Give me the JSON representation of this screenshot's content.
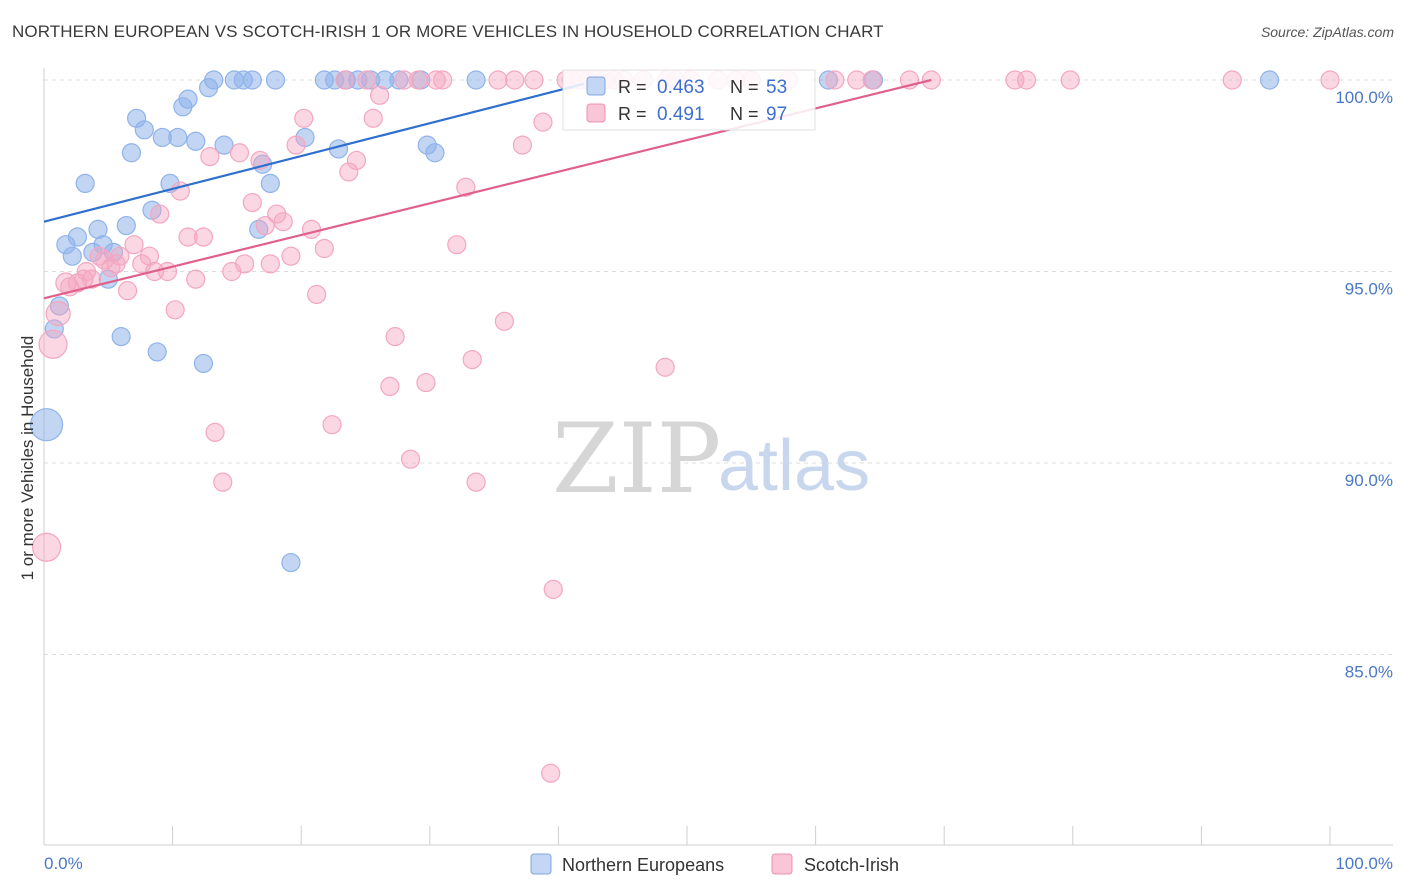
{
  "title": "NORTHERN EUROPEAN VS SCOTCH-IRISH 1 OR MORE VEHICLES IN HOUSEHOLD CORRELATION CHART",
  "source": "Source: ZipAtlas.com",
  "watermark": {
    "part1": "ZIP",
    "part2": "atlas"
  },
  "chart_data": {
    "type": "scatter",
    "xlabel": "",
    "ylabel": "1 or more Vehicles in Household",
    "xlim": [
      0,
      100
    ],
    "ylim": [
      80.5,
      100.7
    ],
    "x_ticks_labels": {
      "left": "0.0%",
      "right": "100.0%"
    },
    "y_ticks": [
      {
        "value": 100,
        "label": "100.0%"
      },
      {
        "value": 95,
        "label": "95.0%"
      },
      {
        "value": 90,
        "label": "90.0%"
      },
      {
        "value": 85,
        "label": "85.0%"
      }
    ],
    "grid": true,
    "legend_position": "top-center",
    "series": [
      {
        "name": "Northern Europeans",
        "color": "#8fb3ea",
        "line_color": "#2f6fce",
        "R": "0.463",
        "N": "53",
        "trend": {
          "x0": 0,
          "y0": 96.3,
          "x1": 42,
          "y1": 99.9
        },
        "points": [
          [
            0.2,
            91.0,
            16
          ],
          [
            0.8,
            93.5,
            9
          ],
          [
            1.2,
            94.1,
            9
          ],
          [
            1.7,
            95.7,
            9
          ],
          [
            2.2,
            95.4,
            9
          ],
          [
            2.6,
            95.9,
            9
          ],
          [
            3.2,
            97.3,
            9
          ],
          [
            3.8,
            95.5,
            9
          ],
          [
            4.2,
            96.1,
            9
          ],
          [
            4.6,
            95.7,
            9
          ],
          [
            5.0,
            94.8,
            9
          ],
          [
            5.4,
            95.5,
            9
          ],
          [
            6.0,
            93.3,
            9
          ],
          [
            6.4,
            96.2,
            9
          ],
          [
            6.8,
            98.1,
            9
          ],
          [
            7.2,
            99.0,
            9
          ],
          [
            7.8,
            98.7,
            9
          ],
          [
            8.4,
            96.6,
            9
          ],
          [
            8.8,
            92.9,
            9
          ],
          [
            9.2,
            98.5,
            9
          ],
          [
            9.8,
            97.3,
            9
          ],
          [
            10.4,
            98.5,
            9
          ],
          [
            10.8,
            99.3,
            9
          ],
          [
            11.2,
            99.5,
            9
          ],
          [
            11.8,
            98.4,
            9
          ],
          [
            12.4,
            92.6,
            9
          ],
          [
            12.8,
            99.8,
            9
          ],
          [
            13.2,
            100.0,
            9
          ],
          [
            14.0,
            98.3,
            9
          ],
          [
            14.8,
            100.0,
            9
          ],
          [
            15.5,
            100.0,
            9
          ],
          [
            16.2,
            100.0,
            9
          ],
          [
            16.7,
            96.1,
            9
          ],
          [
            17.0,
            97.8,
            9
          ],
          [
            17.6,
            97.3,
            9
          ],
          [
            18.0,
            100.0,
            9
          ],
          [
            19.2,
            87.4,
            9
          ],
          [
            20.3,
            98.5,
            9
          ],
          [
            21.8,
            100.0,
            9
          ],
          [
            22.6,
            100.0,
            9
          ],
          [
            22.9,
            98.2,
            9
          ],
          [
            23.5,
            100.0,
            9
          ],
          [
            24.4,
            100.0,
            9
          ],
          [
            25.4,
            100.0,
            9
          ],
          [
            26.5,
            100.0,
            9
          ],
          [
            27.6,
            100.0,
            9
          ],
          [
            29.3,
            100.0,
            9
          ],
          [
            29.8,
            98.3,
            9
          ],
          [
            30.4,
            98.1,
            9
          ],
          [
            33.6,
            100.0,
            9
          ],
          [
            61.0,
            100.0,
            9
          ],
          [
            64.5,
            100.0,
            9
          ],
          [
            95.3,
            100.0,
            9
          ]
        ]
      },
      {
        "name": "Scotch-Irish",
        "color": "#f4a6c0",
        "line_color": "#e0608a",
        "R": "0.491",
        "N": "97",
        "trend": {
          "x0": 0,
          "y0": 94.3,
          "x1": 69,
          "y1": 100.0
        },
        "points": [
          [
            0.2,
            87.8,
            14
          ],
          [
            0.7,
            93.1,
            14
          ],
          [
            1.1,
            93.9,
            12
          ],
          [
            1.7,
            94.7,
            10
          ],
          [
            2.0,
            94.6,
            9
          ],
          [
            2.6,
            94.7,
            9
          ],
          [
            3.1,
            94.8,
            9
          ],
          [
            3.3,
            95.0,
            9
          ],
          [
            3.7,
            94.8,
            9
          ],
          [
            4.3,
            95.4,
            9
          ],
          [
            4.7,
            95.3,
            9
          ],
          [
            5.2,
            95.1,
            9
          ],
          [
            5.6,
            95.2,
            9
          ],
          [
            5.9,
            95.4,
            9
          ],
          [
            6.5,
            94.5,
            9
          ],
          [
            7.0,
            95.7,
            9
          ],
          [
            7.6,
            95.2,
            9
          ],
          [
            8.2,
            95.4,
            9
          ],
          [
            8.6,
            95.0,
            9
          ],
          [
            9.0,
            96.5,
            9
          ],
          [
            9.6,
            95.0,
            9
          ],
          [
            10.2,
            94.0,
            9
          ],
          [
            10.6,
            97.1,
            9
          ],
          [
            11.2,
            95.9,
            9
          ],
          [
            11.8,
            94.8,
            9
          ],
          [
            12.4,
            95.9,
            9
          ],
          [
            12.9,
            98.0,
            9
          ],
          [
            13.3,
            90.8,
            9
          ],
          [
            13.9,
            89.5,
            9
          ],
          [
            14.6,
            95.0,
            9
          ],
          [
            15.2,
            98.1,
            9
          ],
          [
            15.6,
            95.2,
            9
          ],
          [
            16.2,
            96.8,
            9
          ],
          [
            16.8,
            97.9,
            9
          ],
          [
            17.2,
            96.2,
            9
          ],
          [
            17.6,
            95.2,
            9
          ],
          [
            18.1,
            96.5,
            9
          ],
          [
            18.6,
            96.3,
            9
          ],
          [
            19.2,
            95.4,
            9
          ],
          [
            19.6,
            98.3,
            9
          ],
          [
            20.2,
            99.0,
            9
          ],
          [
            20.8,
            96.1,
            9
          ],
          [
            21.2,
            94.4,
            9
          ],
          [
            21.8,
            95.6,
            9
          ],
          [
            22.4,
            91.0,
            9
          ],
          [
            23.4,
            100.0,
            9
          ],
          [
            23.7,
            97.6,
            9
          ],
          [
            24.3,
            97.9,
            9
          ],
          [
            25.1,
            100.0,
            9
          ],
          [
            25.6,
            99.0,
            9
          ],
          [
            26.1,
            99.6,
            9
          ],
          [
            26.9,
            92.0,
            9
          ],
          [
            27.3,
            93.3,
            9
          ],
          [
            28.0,
            100.0,
            9
          ],
          [
            28.5,
            90.1,
            9
          ],
          [
            29.1,
            100.0,
            9
          ],
          [
            29.7,
            92.1,
            9
          ],
          [
            30.5,
            100.0,
            9
          ],
          [
            31.0,
            100.0,
            9
          ],
          [
            32.1,
            95.7,
            9
          ],
          [
            32.8,
            97.2,
            9
          ],
          [
            33.3,
            92.7,
            9
          ],
          [
            33.6,
            89.5,
            9
          ],
          [
            35.3,
            100.0,
            9
          ],
          [
            35.8,
            93.7,
            9
          ],
          [
            36.6,
            100.0,
            9
          ],
          [
            37.2,
            98.3,
            9
          ],
          [
            38.1,
            100.0,
            9
          ],
          [
            38.8,
            98.9,
            9
          ],
          [
            40.6,
            100.0,
            9
          ],
          [
            41.0,
            100.0,
            9
          ],
          [
            41.7,
            100.0,
            9
          ],
          [
            42.3,
            100.0,
            9
          ],
          [
            42.9,
            100.0,
            9
          ],
          [
            43.6,
            100.0,
            9
          ],
          [
            44.3,
            100.0,
            9
          ],
          [
            45.1,
            100.0,
            9
          ],
          [
            46.6,
            100.0,
            9
          ],
          [
            48.4,
            100.0,
            9
          ],
          [
            49.1,
            100.0,
            9
          ],
          [
            50.3,
            100.0,
            9
          ],
          [
            52.4,
            100.0,
            9
          ],
          [
            53.8,
            100.0,
            9
          ],
          [
            55.0,
            100.0,
            9
          ],
          [
            57.9,
            100.0,
            9
          ],
          [
            61.5,
            100.0,
            9
          ],
          [
            63.2,
            100.0,
            9
          ],
          [
            64.4,
            100.0,
            9
          ],
          [
            67.3,
            100.0,
            9
          ],
          [
            69.0,
            100.0,
            9
          ],
          [
            75.5,
            100.0,
            9
          ],
          [
            76.4,
            100.0,
            9
          ],
          [
            79.8,
            100.0,
            9
          ],
          [
            92.4,
            100.0,
            9
          ],
          [
            100.0,
            100.0,
            9
          ],
          [
            39.6,
            86.7,
            9
          ],
          [
            39.4,
            81.9,
            9
          ],
          [
            48.3,
            92.5,
            9
          ]
        ]
      }
    ]
  }
}
